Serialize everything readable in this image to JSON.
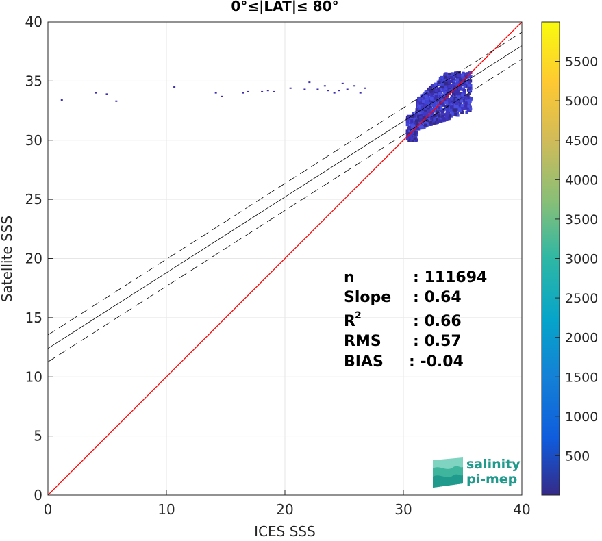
{
  "chart_data": {
    "type": "heatmap",
    "title": "0°≤|LAT|≤ 80°",
    "xlabel": "ICES SSS",
    "ylabel": "Satellite SSS",
    "xlim": [
      0,
      40
    ],
    "ylim": [
      0,
      40
    ],
    "x_ticks": [
      0,
      10,
      20,
      30,
      40
    ],
    "y_ticks": [
      0,
      5,
      10,
      15,
      20,
      25,
      30,
      35,
      40
    ],
    "grid": true,
    "identity_line": {
      "color": "#ff0000",
      "from": [
        0,
        0
      ],
      "to": [
        40,
        40
      ]
    },
    "regression_line": {
      "intercept": 12.4,
      "slope": 0.64
    },
    "confidence_band": {
      "offset": 1.14
    },
    "stats": [
      {
        "label": "n",
        "value": ": 111694"
      },
      {
        "label": "Slope",
        "value": ": 0.64"
      },
      {
        "label": "R",
        "sup": "2",
        "value": ": 0.66"
      },
      {
        "label": "RMS",
        "value": ": 0.57"
      },
      {
        "label": "BIAS",
        "value": ": -0.04"
      }
    ],
    "colorbar": {
      "colormap": "parula",
      "range": [
        0,
        6000
      ],
      "ticks": [
        500,
        1000,
        1500,
        2000,
        2500,
        3000,
        3500,
        4000,
        4500,
        5000,
        5500
      ]
    },
    "density_scatter": {
      "sparse_points": [
        [
          1.2,
          33.4
        ],
        [
          4.1,
          34.0
        ],
        [
          5.0,
          33.9
        ],
        [
          5.8,
          33.3
        ],
        [
          10.7,
          34.5
        ],
        [
          14.2,
          34.0
        ],
        [
          14.7,
          33.7
        ],
        [
          16.5,
          34.0
        ],
        [
          16.9,
          34.1
        ],
        [
          18.1,
          34.1
        ],
        [
          18.6,
          34.2
        ],
        [
          19.1,
          34.1
        ],
        [
          20.5,
          34.4
        ],
        [
          21.7,
          34.3
        ],
        [
          22.1,
          34.9
        ],
        [
          22.8,
          34.3
        ],
        [
          23.4,
          34.6
        ],
        [
          23.7,
          34.2
        ],
        [
          24.2,
          34.0
        ],
        [
          24.6,
          34.2
        ],
        [
          24.9,
          34.8
        ],
        [
          25.3,
          34.3
        ],
        [
          25.9,
          34.6
        ],
        [
          26.4,
          34.0
        ],
        [
          26.8,
          34.4
        ]
      ],
      "cluster_center": [
        33.0,
        33.5
      ]
    }
  },
  "logo": {
    "line1": "salinity",
    "line2": "pi-mep"
  }
}
